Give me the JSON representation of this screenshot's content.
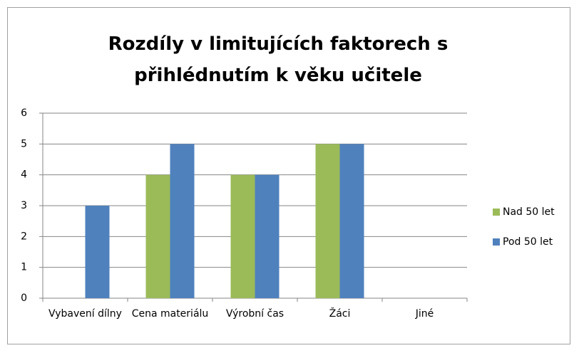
{
  "chart_data": {
    "type": "bar",
    "title": "Rozdíly v limitujících faktorech s přihlédnutím k věku učitele",
    "categories": [
      "Vybavení dílny",
      "Cena materiálu",
      "Výrobní čas",
      "Žáci",
      "Jiné"
    ],
    "series": [
      {
        "name": "Nad 50 let",
        "color": "#9bbb59",
        "values": [
          0,
          4,
          4,
          5,
          0
        ]
      },
      {
        "name": "Pod 50 let",
        "color": "#4f81bd",
        "values": [
          3,
          5,
          4,
          5,
          0
        ]
      }
    ],
    "ylim": [
      0,
      6
    ],
    "yticks": [
      0,
      1,
      2,
      3,
      4,
      5,
      6
    ],
    "grid": true,
    "legend": "right"
  }
}
